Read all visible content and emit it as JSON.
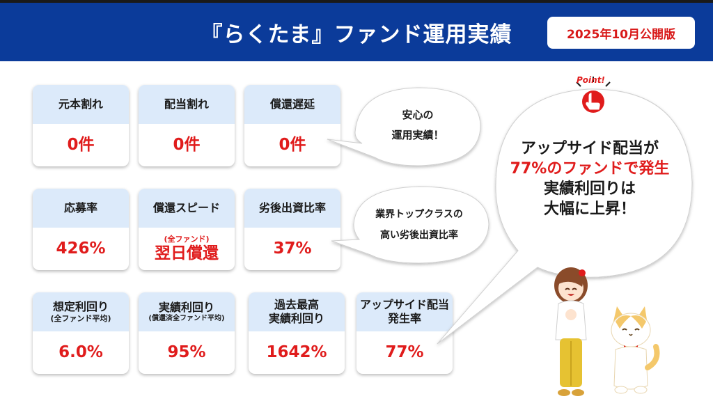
{
  "header": {
    "title": "『らくたま』ファンド運用実績",
    "date_badge": "2025年10月公開版"
  },
  "cards": {
    "c1": {
      "label": "元本割れ",
      "value": "0件"
    },
    "c2": {
      "label": "配当割れ",
      "value": "0件"
    },
    "c3": {
      "label": "償還遅延",
      "value": "0件"
    },
    "c4": {
      "label": "応募率",
      "value": "426%"
    },
    "c5": {
      "label": "償還スピード",
      "note": "(全ファンド)",
      "value": "翌日償還"
    },
    "c6": {
      "label": "劣後出資比率",
      "value": "37%"
    },
    "c7": {
      "label": "想定利回り",
      "sub": "(全ファンド平均)",
      "value": "6.0%"
    },
    "c8": {
      "label": "実績利回り",
      "sub": "(償還済全ファンド平均)",
      "value": "95%"
    },
    "c9": {
      "label": "過去最高",
      "label2": "実績利回り",
      "value": "1642%"
    },
    "c10": {
      "label": "アップサイド配当",
      "label2": "発生率",
      "value": "77%"
    }
  },
  "bubbles": {
    "b1": {
      "line1": "安心の",
      "line2": "運用実績！"
    },
    "b2": {
      "line1": "業界トップクラスの",
      "line2": "高い劣後出資比率"
    },
    "b3": {
      "line1": "アップサイド配当が",
      "line2": "77%のファンドで発生",
      "line3": "実績利回りは",
      "line4": "大幅に上昇！"
    }
  },
  "point_label": "Point!",
  "colors": {
    "header_bg": "#0b3b9a",
    "accent_red": "#e01c1c",
    "card_top": "#dceafa"
  }
}
